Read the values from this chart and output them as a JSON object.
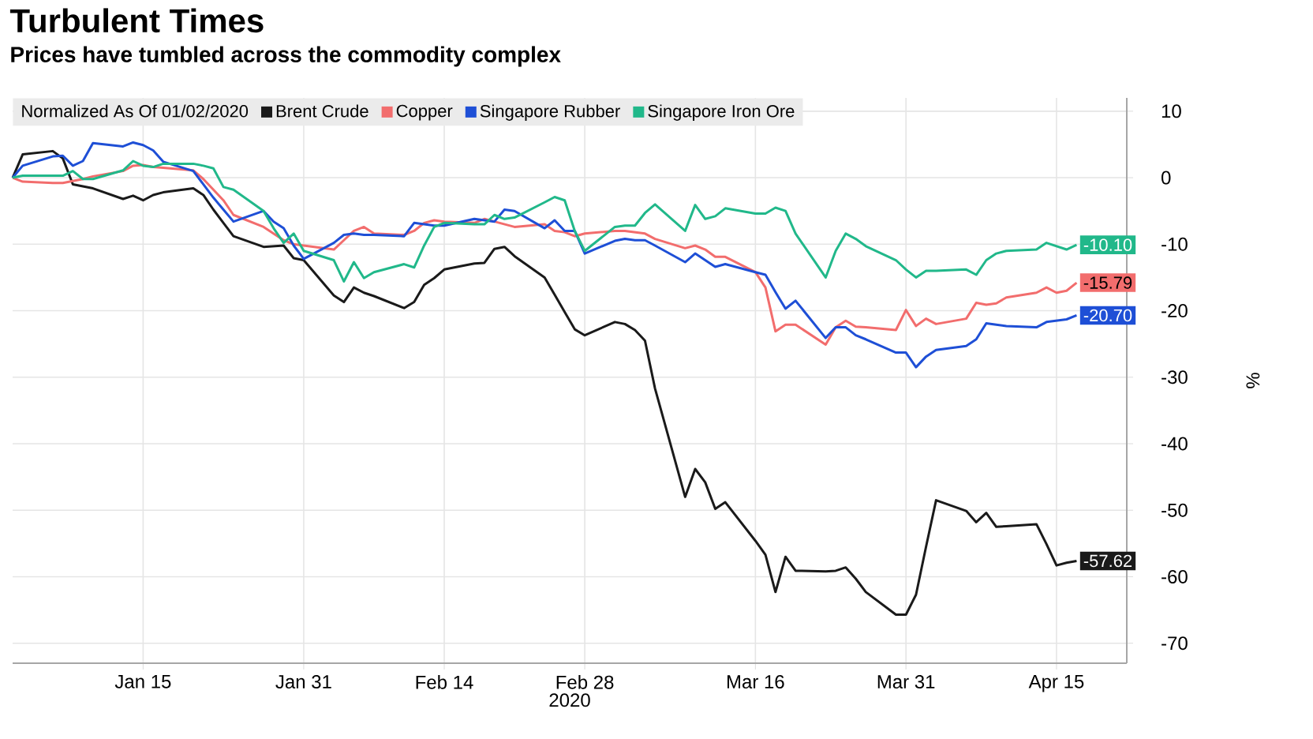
{
  "chart_data": {
    "type": "line",
    "title": "Turbulent Times",
    "subtitle": "Prices have tumbled across the commodity complex",
    "legend_title": "Normalized As Of 01/02/2020",
    "xlabel": "2020",
    "ylabel": "%",
    "x": [
      "2020-01-02",
      "2020-01-03",
      "2020-01-06",
      "2020-01-07",
      "2020-01-08",
      "2020-01-09",
      "2020-01-10",
      "2020-01-13",
      "2020-01-14",
      "2020-01-15",
      "2020-01-16",
      "2020-01-17",
      "2020-01-20",
      "2020-01-21",
      "2020-01-22",
      "2020-01-23",
      "2020-01-24",
      "2020-01-27",
      "2020-01-28",
      "2020-01-29",
      "2020-01-30",
      "2020-01-31",
      "2020-02-03",
      "2020-02-04",
      "2020-02-05",
      "2020-02-06",
      "2020-02-07",
      "2020-02-10",
      "2020-02-11",
      "2020-02-12",
      "2020-02-13",
      "2020-02-14",
      "2020-02-17",
      "2020-02-18",
      "2020-02-19",
      "2020-02-20",
      "2020-02-21",
      "2020-02-24",
      "2020-02-25",
      "2020-02-26",
      "2020-02-27",
      "2020-02-28",
      "2020-03-02",
      "2020-03-03",
      "2020-03-04",
      "2020-03-05",
      "2020-03-06",
      "2020-03-09",
      "2020-03-10",
      "2020-03-11",
      "2020-03-12",
      "2020-03-13",
      "2020-03-16",
      "2020-03-17",
      "2020-03-18",
      "2020-03-19",
      "2020-03-20",
      "2020-03-23",
      "2020-03-24",
      "2020-03-25",
      "2020-03-26",
      "2020-03-27",
      "2020-03-30",
      "2020-03-31",
      "2020-04-01",
      "2020-04-02",
      "2020-04-03",
      "2020-04-06",
      "2020-04-07",
      "2020-04-08",
      "2020-04-09",
      "2020-04-10",
      "2020-04-13",
      "2020-04-14",
      "2020-04-15",
      "2020-04-16",
      "2020-04-17"
    ],
    "series": [
      {
        "name": "Brent Crude",
        "color": "#1a1a1a",
        "values": [
          0,
          3.5,
          4.0,
          2.9,
          -1.0,
          -1.3,
          -1.6,
          -3.2,
          -2.7,
          -3.4,
          -2.6,
          -2.2,
          -1.6,
          -2.6,
          -4.8,
          -6.8,
          -8.8,
          -10.4,
          -10.3,
          -10.2,
          -12.1,
          -12.4,
          -17.7,
          -18.7,
          -16.5,
          -17.3,
          -17.8,
          -19.6,
          -18.7,
          -16.1,
          -15.1,
          -13.8,
          -12.9,
          -12.8,
          -10.7,
          -10.4,
          -11.8,
          -15.0,
          -17.6,
          -20.2,
          -22.8,
          -23.7,
          -21.7,
          -22.0,
          -22.9,
          -24.5,
          -31.7,
          -48.0,
          -43.8,
          -45.8,
          -49.8,
          -48.8,
          -54.6,
          -56.7,
          -62.3,
          -57.0,
          -59.1,
          -59.2,
          -59.1,
          -58.6,
          -60.3,
          -62.3,
          -65.7,
          -65.7,
          -62.7,
          -55.5,
          -48.5,
          -50.1,
          -51.8,
          -50.4,
          -52.5,
          -52.4,
          -52.1,
          -55.1,
          -58.3,
          -57.9,
          -57.62
        ],
        "value_labels": [
          null,
          null,
          null,
          null,
          null,
          null,
          null,
          null,
          null,
          null,
          null,
          null,
          null,
          null,
          null,
          null,
          null,
          null,
          null,
          null,
          null,
          null,
          null,
          null,
          null,
          null,
          null,
          null,
          null,
          null,
          null,
          null,
          null,
          null,
          null,
          null,
          null,
          null,
          null,
          null,
          null,
          null,
          null,
          null,
          null,
          null,
          null,
          null,
          null,
          null,
          null,
          null,
          null,
          null,
          null,
          null,
          null,
          null,
          null,
          null,
          null,
          null,
          null,
          null,
          null,
          null,
          null,
          null,
          null,
          null,
          null,
          null,
          null,
          null,
          null,
          null,
          "-57.62"
        ]
      },
      {
        "name": "Copper",
        "color": "#f26d6d",
        "values": [
          0,
          -0.6,
          -0.8,
          -0.8,
          -0.5,
          -0.2,
          0.2,
          1.0,
          1.8,
          1.9,
          1.6,
          1.5,
          1.1,
          -0.2,
          -1.8,
          -3.4,
          -5.6,
          -7.4,
          -8.4,
          -9.4,
          -10.0,
          -10.2,
          -10.8,
          -9.4,
          -8.0,
          -7.4,
          -8.4,
          -8.6,
          -8.0,
          -6.8,
          -6.4,
          -6.6,
          -6.8,
          -6.2,
          -6.6,
          -7.0,
          -7.4,
          -7.0,
          -8.0,
          -8.2,
          -8.8,
          -8.4,
          -8.0,
          -8.0,
          -8.2,
          -8.4,
          -9.2,
          -10.6,
          -10.2,
          -10.8,
          -11.9,
          -11.9,
          -14.2,
          -16.5,
          -23.1,
          -22.1,
          -22.1,
          -25.1,
          -22.5,
          -21.5,
          -22.4,
          -22.5,
          -22.9,
          -19.9,
          -22.3,
          -21.2,
          -22.0,
          -21.2,
          -18.8,
          -19.1,
          -18.9,
          -18.0,
          -17.3,
          -16.5,
          -17.3,
          -17.0,
          -15.79
        ],
        "value_labels": [
          null,
          null,
          null,
          null,
          null,
          null,
          null,
          null,
          null,
          null,
          null,
          null,
          null,
          null,
          null,
          null,
          null,
          null,
          null,
          null,
          null,
          null,
          null,
          null,
          null,
          null,
          null,
          null,
          null,
          null,
          null,
          null,
          null,
          null,
          null,
          null,
          null,
          null,
          null,
          null,
          null,
          null,
          null,
          null,
          null,
          null,
          null,
          null,
          null,
          null,
          null,
          null,
          null,
          null,
          null,
          null,
          null,
          null,
          null,
          null,
          null,
          null,
          null,
          null,
          null,
          null,
          null,
          null,
          null,
          null,
          null,
          null,
          null,
          null,
          null,
          null,
          "-15.79"
        ]
      },
      {
        "name": "Singapore Rubber",
        "color": "#1e4fd6",
        "values": [
          0,
          1.8,
          3.2,
          3.3,
          1.8,
          2.5,
          5.2,
          4.7,
          5.3,
          4.9,
          4.1,
          2.4,
          1.0,
          -1.0,
          -3.0,
          -4.8,
          -6.6,
          -5.0,
          -6.6,
          -7.6,
          -10.2,
          -12.2,
          -9.8,
          -8.6,
          -8.4,
          -8.6,
          -8.6,
          -8.8,
          -6.8,
          -7.0,
          -7.2,
          -7.2,
          -6.2,
          -6.4,
          -6.6,
          -4.8,
          -5.0,
          -7.6,
          -6.4,
          -8.0,
          -8.0,
          -11.4,
          -9.5,
          -9.2,
          -9.4,
          -9.4,
          -10.2,
          -12.7,
          -11.4,
          -12.4,
          -13.4,
          -13.0,
          -14.2,
          -14.6,
          -17.2,
          -19.7,
          -18.5,
          -24.1,
          -22.5,
          -22.5,
          -23.7,
          -24.3,
          -26.3,
          -26.3,
          -28.5,
          -26.9,
          -25.9,
          -25.3,
          -24.3,
          -21.9,
          -22.1,
          -22.3,
          -22.5,
          -21.7,
          -21.5,
          -21.3,
          -20.7
        ],
        "value_labels": [
          null,
          null,
          null,
          null,
          null,
          null,
          null,
          null,
          null,
          null,
          null,
          null,
          null,
          null,
          null,
          null,
          null,
          null,
          null,
          null,
          null,
          null,
          null,
          null,
          null,
          null,
          null,
          null,
          null,
          null,
          null,
          null,
          null,
          null,
          null,
          null,
          null,
          null,
          null,
          null,
          null,
          null,
          null,
          null,
          null,
          null,
          null,
          null,
          null,
          null,
          null,
          null,
          null,
          null,
          null,
          null,
          null,
          null,
          null,
          null,
          null,
          null,
          null,
          null,
          null,
          null,
          null,
          null,
          null,
          null,
          null,
          null,
          null,
          null,
          null,
          null,
          "-20.70"
        ]
      },
      {
        "name": "Singapore Iron Ore",
        "color": "#21b88a",
        "values": [
          0,
          0.3,
          0.3,
          0.3,
          1.0,
          -0.2,
          -0.2,
          1.1,
          2.5,
          1.8,
          1.6,
          2.1,
          2.1,
          1.8,
          1.4,
          -1.4,
          -1.8,
          -5.0,
          -7.6,
          -9.8,
          -8.4,
          -11.0,
          -12.4,
          -15.6,
          -12.7,
          -15.1,
          -14.2,
          -13.0,
          -13.5,
          -10.2,
          -7.4,
          -6.8,
          -7.0,
          -7.0,
          -5.6,
          -6.2,
          -6.0,
          -3.7,
          -2.9,
          -3.4,
          -8.0,
          -11.0,
          -7.4,
          -7.2,
          -7.2,
          -5.3,
          -4.0,
          -8.0,
          -4.1,
          -6.2,
          -5.8,
          -4.6,
          -5.4,
          -5.4,
          -4.5,
          -5.0,
          -8.4,
          -15.0,
          -11.0,
          -8.4,
          -9.2,
          -10.3,
          -12.4,
          -13.8,
          -15.0,
          -14.0,
          -14.0,
          -13.8,
          -14.6,
          -12.4,
          -11.4,
          -11.0,
          -10.8,
          -9.8,
          -10.3,
          -10.8,
          -10.1
        ],
        "value_labels": [
          null,
          null,
          null,
          null,
          null,
          null,
          null,
          null,
          null,
          null,
          null,
          null,
          null,
          null,
          null,
          null,
          null,
          null,
          null,
          null,
          null,
          null,
          null,
          null,
          null,
          null,
          null,
          null,
          null,
          null,
          null,
          null,
          null,
          null,
          null,
          null,
          null,
          null,
          null,
          null,
          null,
          null,
          null,
          null,
          null,
          null,
          null,
          null,
          null,
          null,
          null,
          null,
          null,
          null,
          null,
          null,
          null,
          null,
          null,
          null,
          null,
          null,
          null,
          null,
          null,
          null,
          null,
          null,
          null,
          null,
          null,
          null,
          null,
          null,
          null,
          null,
          "-10.10"
        ]
      }
    ],
    "xlim": [
      "2020-01-02",
      "2020-04-22"
    ],
    "xticks": [
      {
        "value": "2020-01-15",
        "label": "Jan 15"
      },
      {
        "value": "2020-01-31",
        "label": "Jan 31"
      },
      {
        "value": "2020-02-14",
        "label": "Feb 14"
      },
      {
        "value": "2020-02-28",
        "label": "Feb 28"
      },
      {
        "value": "2020-03-16",
        "label": "Mar 16"
      },
      {
        "value": "2020-03-31",
        "label": "Mar 31"
      },
      {
        "value": "2020-04-15",
        "label": "Apr 15"
      }
    ],
    "ylim": [
      -73,
      12
    ],
    "yticks": [
      10,
      0,
      -10,
      -20,
      -30,
      -40,
      -50,
      -60,
      -70
    ],
    "grid": true,
    "legend": "top left",
    "marker": "none",
    "line_style": "solid"
  }
}
